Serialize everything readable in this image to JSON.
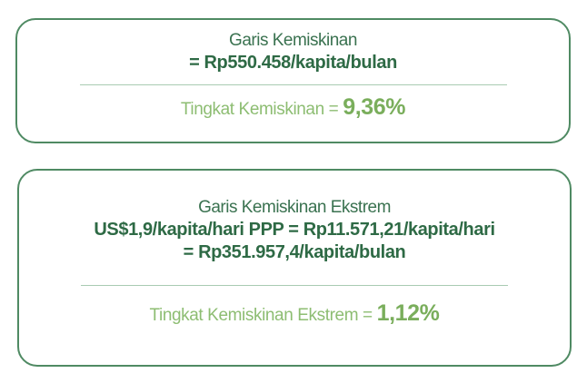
{
  "poverty": {
    "title": "Garis Kemiskinan",
    "line_value": "= Rp550.458/kapita/bulan",
    "rate_label": "Tingkat Kemiskinan = ",
    "rate_value": "9,36%"
  },
  "extreme_poverty": {
    "title": "Garis Kemiskinan Ekstrem",
    "line_value_1": "US$1,9/kapita/hari PPP = Rp11.571,21/kapita/hari",
    "line_value_2": "= Rp351.957,4/kapita/bulan",
    "rate_label": "Tingkat Kemiskinan Ekstrem = ",
    "rate_value": "1,12%"
  },
  "colors": {
    "border": "#4f8a63",
    "dark_green": "#2e6a45",
    "light_green": "#8dbd72"
  }
}
